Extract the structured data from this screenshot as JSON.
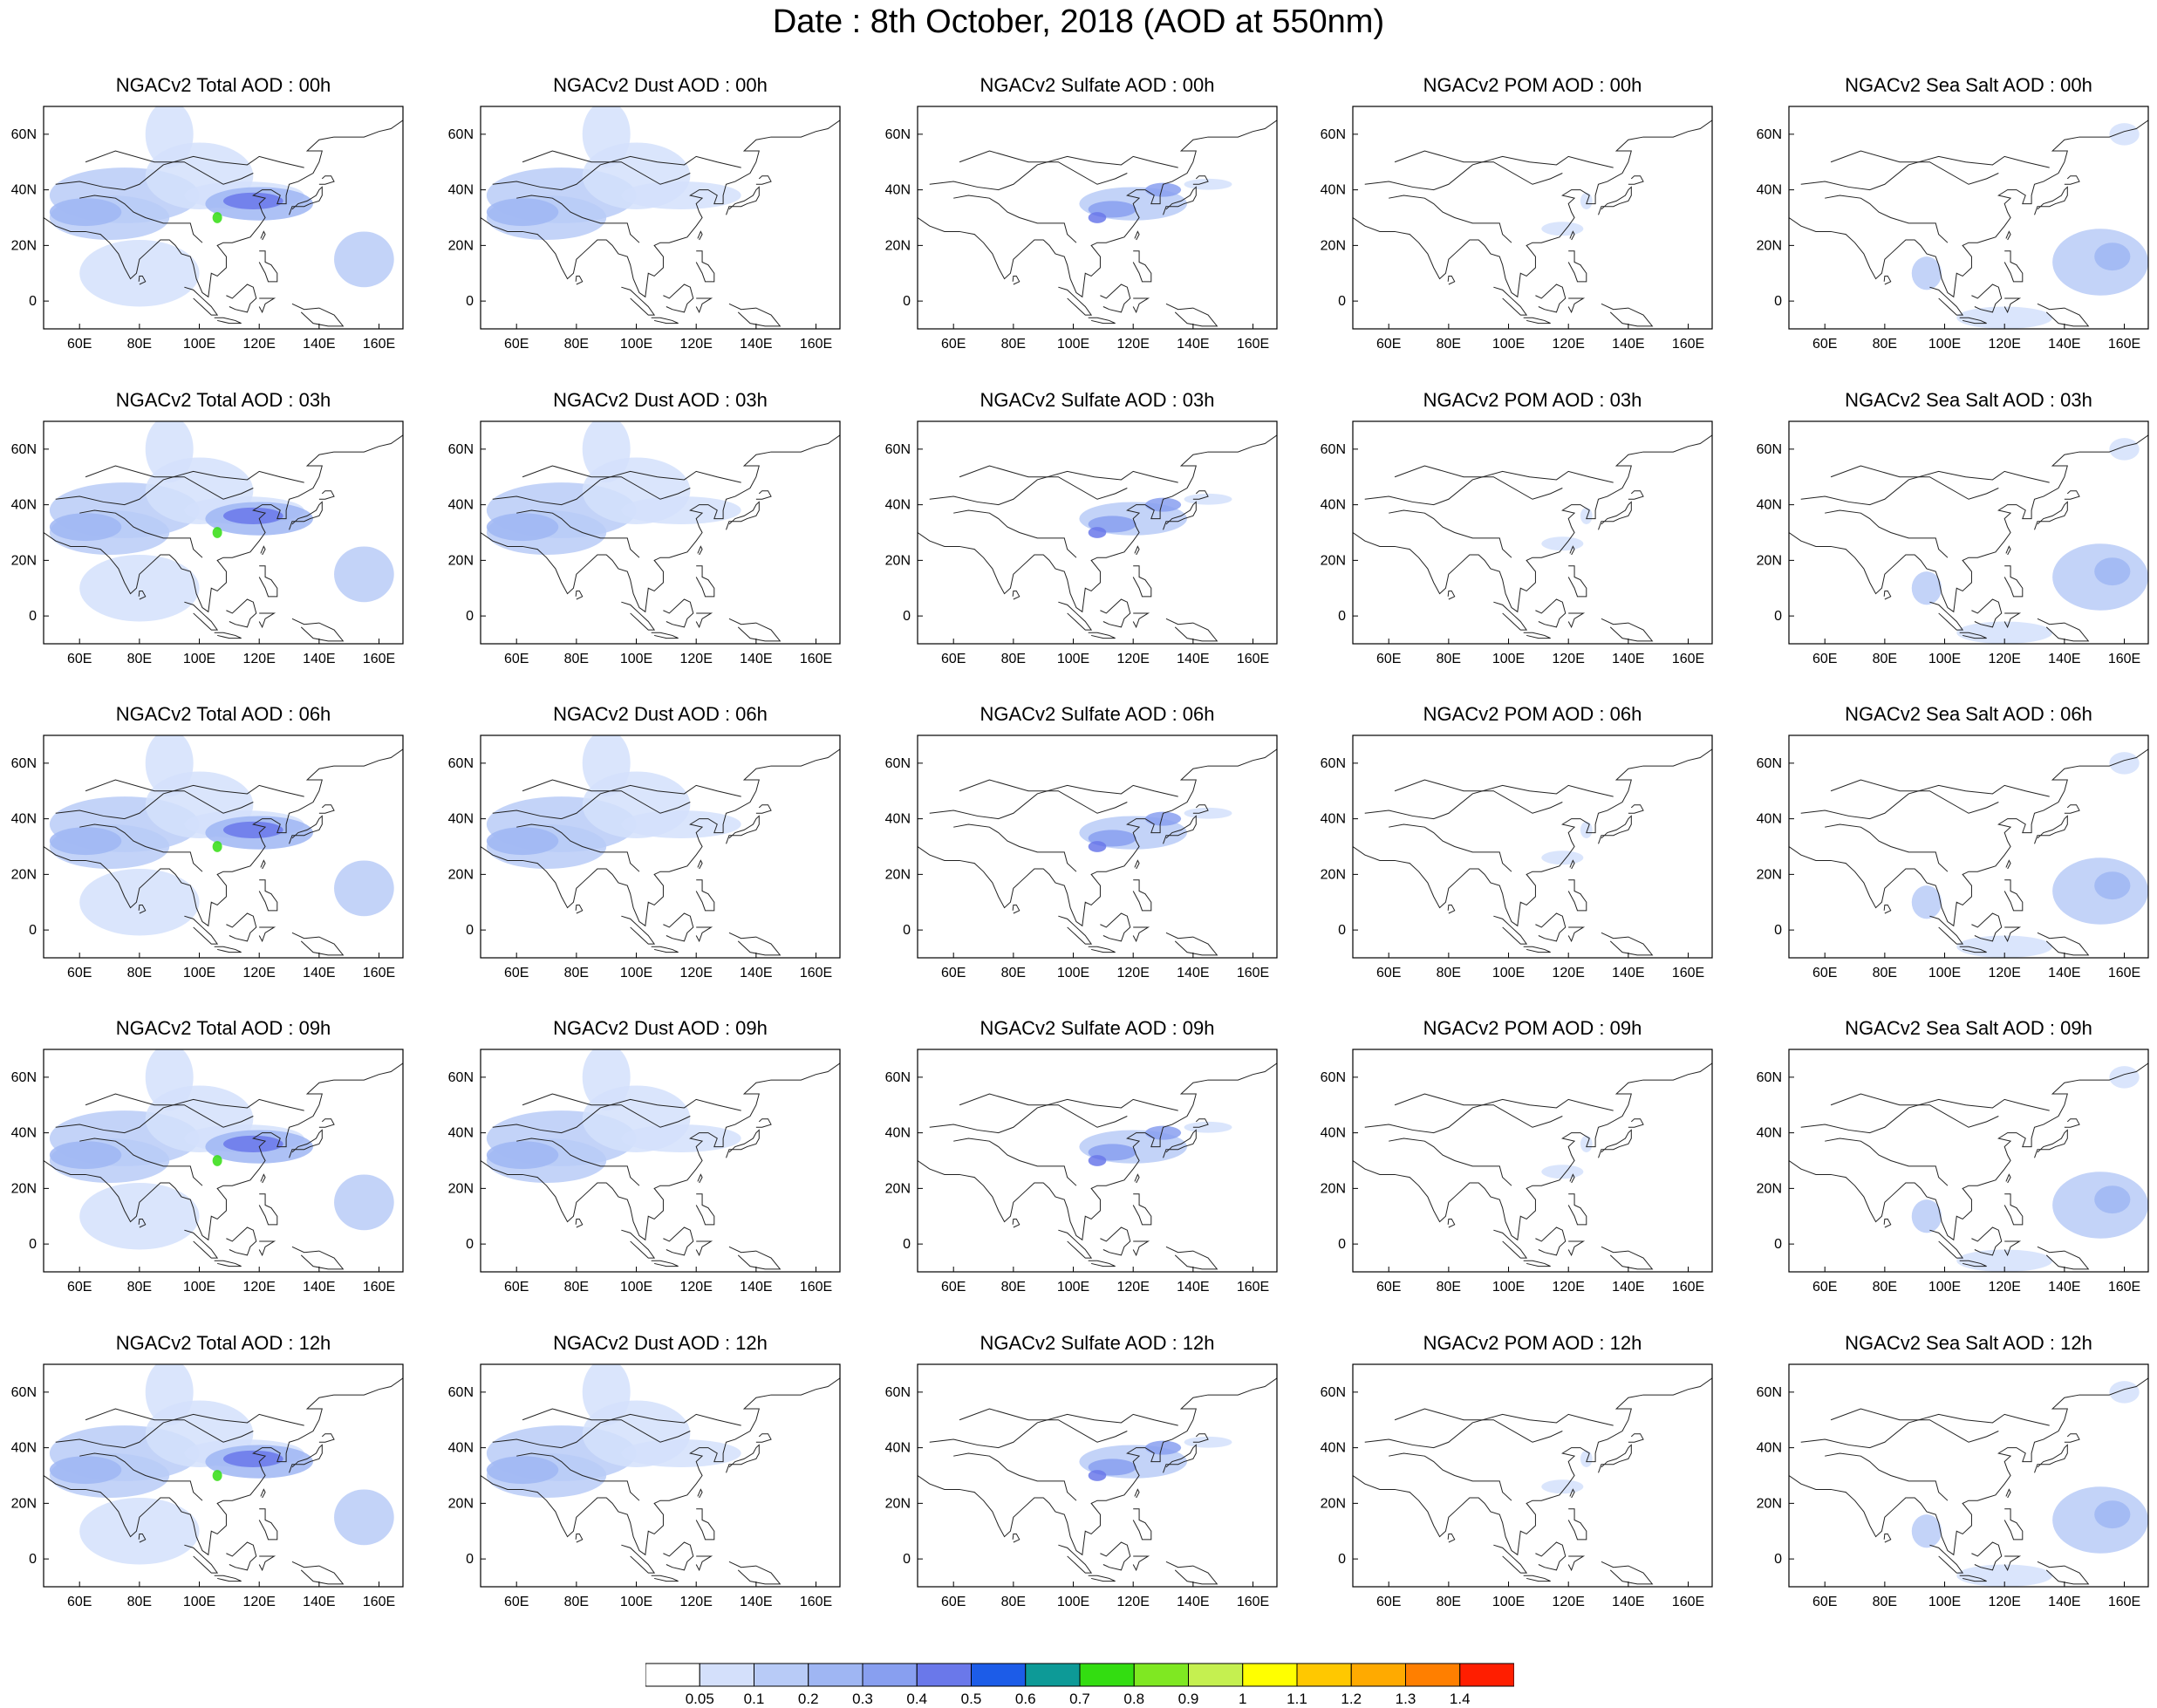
{
  "title": "Date : 8th October, 2018 (AOD at 550nm)",
  "panels": [
    [
      "NGACv2 Total AOD : 00h",
      "NGACv2 Dust AOD : 00h",
      "NGACv2 Sulfate AOD : 00h",
      "NGACv2 POM AOD : 00h",
      "NGACv2 Sea Salt AOD : 00h"
    ],
    [
      "NGACv2 Total AOD : 03h",
      "NGACv2 Dust AOD : 03h",
      "NGACv2 Sulfate AOD : 03h",
      "NGACv2 POM AOD : 03h",
      "NGACv2 Sea Salt AOD : 03h"
    ],
    [
      "NGACv2 Total AOD : 06h",
      "NGACv2 Dust AOD : 06h",
      "NGACv2 Sulfate AOD : 06h",
      "NGACv2 POM AOD : 06h",
      "NGACv2 Sea Salt AOD : 06h"
    ],
    [
      "NGACv2 Total AOD : 09h",
      "NGACv2 Dust AOD : 09h",
      "NGACv2 Sulfate AOD : 09h",
      "NGACv2 POM AOD : 09h",
      "NGACv2 Sea Salt  AOD : 09h"
    ],
    [
      "NGACv2 Total AOD  : 12h",
      "NGACv2 Dust AOD : 12h",
      "NGACv2 Sulfate AOD : 12h",
      "NGACv2 POM  AOD : 12h",
      "NGACv2 Sea Salt  AOD : 12h"
    ]
  ],
  "map": {
    "lon_range": [
      48,
      168
    ],
    "lat_range": [
      -10,
      70
    ],
    "lon_ticks": [
      "60E",
      "80E",
      "100E",
      "120E",
      "140E",
      "160E"
    ],
    "lat_ticks": [
      "60N",
      "40N",
      "20N",
      "0"
    ]
  },
  "colorbar": {
    "labels": [
      "0.05",
      "0.1",
      "0.2",
      "0.3",
      "0.4",
      "0.5",
      "0.6",
      "0.7",
      "0.8",
      "0.9",
      "1",
      "1.1",
      "1.2",
      "1.3",
      "1.4"
    ],
    "colors": [
      "#ffffff",
      "#d4e0fb",
      "#b8cbf7",
      "#9fb6f3",
      "#889ff0",
      "#6a78ea",
      "#1c5ce8",
      "#0d9a97",
      "#33dd11",
      "#7fe822",
      "#c5f050",
      "#ffff00",
      "#ffc800",
      "#ffaa00",
      "#ff7f00",
      "#ff1e00"
    ]
  }
}
